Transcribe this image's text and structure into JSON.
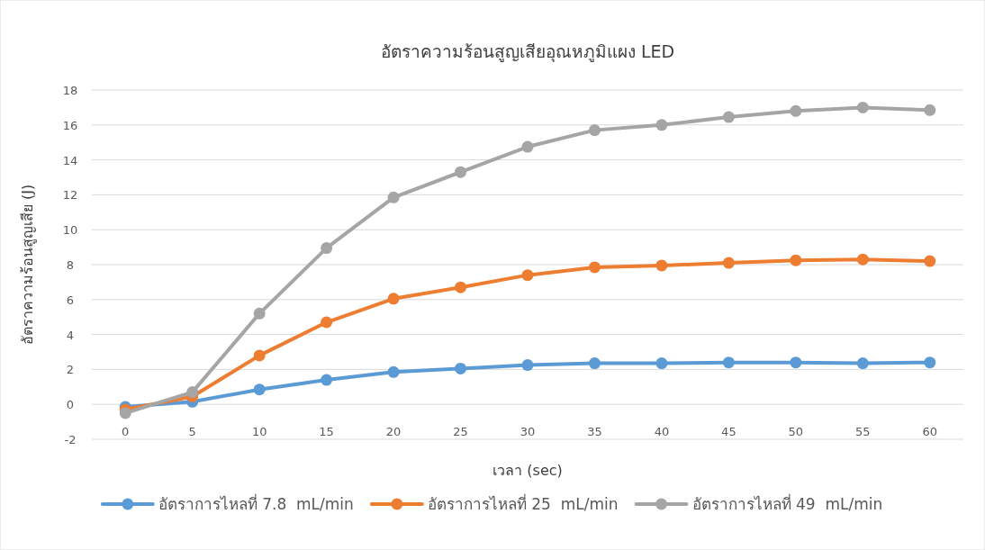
{
  "chart_data": {
    "type": "line",
    "title": "อัตราความร้อนสูญเสียอุณหภูมิแผง LED",
    "xlabel": "เวลา (sec)",
    "ylabel": "อัตราความร้อนสูญเสีย (J)",
    "categories": [
      "0",
      "5",
      "10",
      "15",
      "20",
      "25",
      "30",
      "35",
      "40",
      "45",
      "50",
      "55",
      "60"
    ],
    "series": [
      {
        "name": "อัตราการไหลที่ 7.8  mL/min",
        "color": "#5b9bd5",
        "values": [
          -0.15,
          0.15,
          0.85,
          1.4,
          1.85,
          2.05,
          2.25,
          2.35,
          2.35,
          2.4,
          2.4,
          2.35,
          2.4
        ]
      },
      {
        "name": "อัตราการไหลที่ 25  mL/min",
        "color": "#ed7d31",
        "values": [
          -0.3,
          0.45,
          2.8,
          4.7,
          6.05,
          6.7,
          7.4,
          7.85,
          7.95,
          8.1,
          8.25,
          8.3,
          8.2
        ]
      },
      {
        "name": "อัตราการไหลที่ 49  mL/min",
        "color": "#a5a5a5",
        "values": [
          -0.5,
          0.7,
          5.2,
          8.95,
          11.85,
          13.3,
          14.75,
          15.7,
          16.0,
          16.45,
          16.8,
          17.0,
          16.85
        ]
      }
    ],
    "ylim": [
      -2,
      18
    ],
    "yticks": [
      -2,
      0,
      2,
      4,
      6,
      8,
      10,
      12,
      14,
      16,
      18
    ],
    "grid": "y",
    "legend": "bottom",
    "marker": "circle",
    "line_style": "solid"
  }
}
